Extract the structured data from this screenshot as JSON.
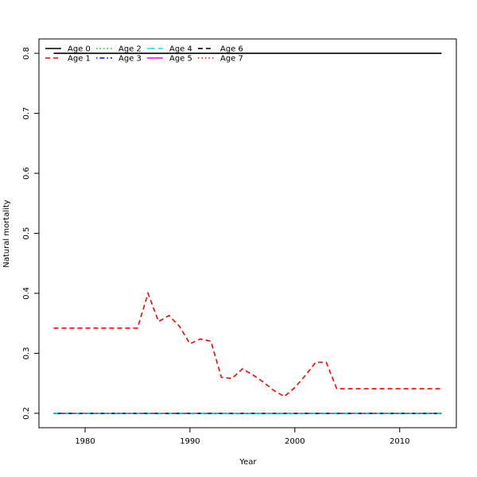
{
  "chart_data": {
    "type": "line",
    "xlabel": "Year",
    "ylabel": "Natural mortality",
    "xlim": [
      1975.6,
      2015.4
    ],
    "ylim": [
      0.176,
      0.824
    ],
    "xticks": [
      1980,
      1990,
      2000,
      2010
    ],
    "yticks": [
      0.2,
      0.3,
      0.4,
      0.5,
      0.6,
      0.7,
      0.8
    ],
    "grid": false,
    "legend_placement": "top-left",
    "x": [
      1977,
      1978,
      1979,
      1980,
      1981,
      1982,
      1983,
      1984,
      1985,
      1986,
      1987,
      1988,
      1989,
      1990,
      1991,
      1992,
      1993,
      1994,
      1995,
      1996,
      1997,
      1998,
      1999,
      2000,
      2001,
      2002,
      2003,
      2004,
      2005,
      2006,
      2007,
      2008,
      2009,
      2010,
      2011,
      2012,
      2013,
      2014
    ],
    "series": [
      {
        "name": "Age 0",
        "color": "#000000",
        "dash": "solid",
        "values": [
          0.8,
          0.8,
          0.8,
          0.8,
          0.8,
          0.8,
          0.8,
          0.8,
          0.8,
          0.8,
          0.8,
          0.8,
          0.8,
          0.8,
          0.8,
          0.8,
          0.8,
          0.8,
          0.8,
          0.8,
          0.8,
          0.8,
          0.8,
          0.8,
          0.8,
          0.8,
          0.8,
          0.8,
          0.8,
          0.8,
          0.8,
          0.8,
          0.8,
          0.8,
          0.8,
          0.8,
          0.8,
          0.8
        ]
      },
      {
        "name": "Age 1",
        "color": "#ff0000",
        "dash": "dashed",
        "values": [
          0.342,
          0.342,
          0.342,
          0.342,
          0.342,
          0.342,
          0.342,
          0.342,
          0.342,
          0.4,
          0.353,
          0.363,
          0.345,
          0.316,
          0.324,
          0.32,
          0.26,
          0.258,
          0.274,
          0.264,
          0.252,
          0.238,
          0.228,
          0.243,
          0.263,
          0.285,
          0.285,
          0.241,
          0.241,
          0.241,
          0.241,
          0.241,
          0.241,
          0.241,
          0.241,
          0.241,
          0.241,
          0.241
        ]
      },
      {
        "name": "Age 2",
        "color": "#00cd00",
        "dash": "dotted",
        "values": [
          0.2,
          0.2,
          0.2,
          0.2,
          0.2,
          0.2,
          0.2,
          0.2,
          0.2,
          0.2,
          0.2,
          0.2,
          0.2,
          0.2,
          0.2,
          0.2,
          0.2,
          0.2,
          0.2,
          0.2,
          0.2,
          0.2,
          0.2,
          0.2,
          0.2,
          0.2,
          0.2,
          0.2,
          0.2,
          0.2,
          0.2,
          0.2,
          0.2,
          0.2,
          0.2,
          0.2,
          0.2,
          0.2
        ]
      },
      {
        "name": "Age 3",
        "color": "#0000ff",
        "dash": "dotdash",
        "values": [
          0.2,
          0.2,
          0.2,
          0.2,
          0.2,
          0.2,
          0.2,
          0.2,
          0.2,
          0.2,
          0.2,
          0.2,
          0.2,
          0.2,
          0.2,
          0.2,
          0.2,
          0.2,
          0.2,
          0.2,
          0.2,
          0.2,
          0.2,
          0.2,
          0.2,
          0.2,
          0.2,
          0.2,
          0.2,
          0.2,
          0.2,
          0.2,
          0.2,
          0.2,
          0.2,
          0.2,
          0.2,
          0.2
        ]
      },
      {
        "name": "Age 4",
        "color": "#00e5ee",
        "dash": "longdash",
        "values": [
          0.2,
          0.2,
          0.2,
          0.2,
          0.2,
          0.2,
          0.2,
          0.2,
          0.2,
          0.2,
          0.2,
          0.2,
          0.2,
          0.2,
          0.2,
          0.2,
          0.2,
          0.2,
          0.2,
          0.2,
          0.2,
          0.2,
          0.2,
          0.2,
          0.2,
          0.2,
          0.2,
          0.2,
          0.2,
          0.2,
          0.2,
          0.2,
          0.2,
          0.2,
          0.2,
          0.2,
          0.2,
          0.2
        ]
      },
      {
        "name": "Age 5",
        "color": "#ff00ff",
        "dash": "solid",
        "values": [
          0.2,
          0.2,
          0.2,
          0.2,
          0.2,
          0.2,
          0.2,
          0.2,
          0.2,
          0.2,
          0.2,
          0.2,
          0.2,
          0.2,
          0.2,
          0.2,
          0.2,
          0.2,
          0.2,
          0.2,
          0.2,
          0.2,
          0.2,
          0.2,
          0.2,
          0.2,
          0.2,
          0.2,
          0.2,
          0.2,
          0.2,
          0.2,
          0.2,
          0.2,
          0.2,
          0.2,
          0.2,
          0.2
        ]
      },
      {
        "name": "Age 6",
        "color": "#000000",
        "dash": "dashed",
        "values": [
          0.2,
          0.2,
          0.2,
          0.2,
          0.2,
          0.2,
          0.2,
          0.2,
          0.2,
          0.2,
          0.2,
          0.2,
          0.2,
          0.2,
          0.2,
          0.2,
          0.2,
          0.2,
          0.2,
          0.2,
          0.2,
          0.2,
          0.2,
          0.2,
          0.2,
          0.2,
          0.2,
          0.2,
          0.2,
          0.2,
          0.2,
          0.2,
          0.2,
          0.2,
          0.2,
          0.2,
          0.2,
          0.2
        ]
      },
      {
        "name": "Age 7",
        "color": "#ff0000",
        "dash": "dotted",
        "values": [
          0.2,
          0.2,
          0.2,
          0.2,
          0.2,
          0.2,
          0.2,
          0.2,
          0.2,
          0.2,
          0.2,
          0.2,
          0.2,
          0.2,
          0.2,
          0.2,
          0.2,
          0.2,
          0.2,
          0.2,
          0.2,
          0.2,
          0.2,
          0.2,
          0.2,
          0.2,
          0.2,
          0.2,
          0.2,
          0.2,
          0.2,
          0.2,
          0.2,
          0.2,
          0.2,
          0.2,
          0.2,
          0.2
        ]
      }
    ]
  }
}
